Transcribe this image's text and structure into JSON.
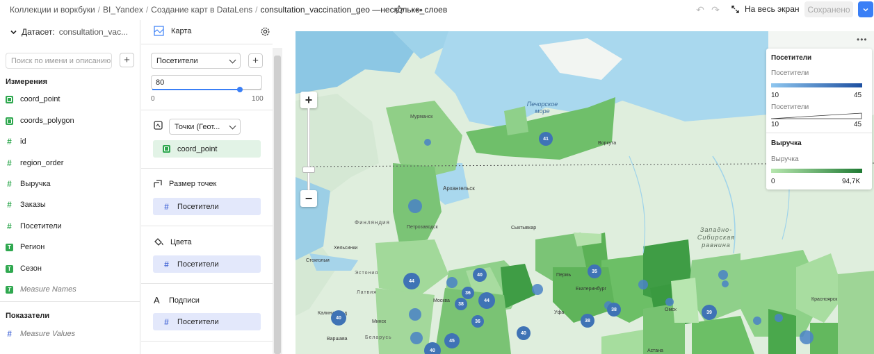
{
  "breadcrumbs": [
    "Коллекции и воркбуки",
    "BI_Yandex",
    "Создание карт в DataLens",
    "consultation_vaccination_geo —несколько_слоев"
  ],
  "toolbar": {
    "fullscreen_label": "На весь экран",
    "saved_label": "Сохранено"
  },
  "dataset": {
    "label": "Датасет:",
    "name": "consultation_vac..."
  },
  "search": {
    "placeholder": "Поиск по имени и описанию"
  },
  "dimensions": {
    "title": "Измерения",
    "items": [
      {
        "label": "coord_point",
        "icon": "geo-icon"
      },
      {
        "label": "coords_polygon",
        "icon": "geo-icon"
      },
      {
        "label": "id",
        "icon": "number-icon"
      },
      {
        "label": "region_order",
        "icon": "number-icon"
      },
      {
        "label": "Выручка",
        "icon": "number-icon"
      },
      {
        "label": "Заказы",
        "icon": "number-icon"
      },
      {
        "label": "Посетители",
        "icon": "number-icon"
      },
      {
        "label": "Регион",
        "icon": "text-icon"
      },
      {
        "label": "Сезон",
        "icon": "text-icon"
      },
      {
        "label": "Measure Names",
        "icon": "text-icon"
      }
    ]
  },
  "measures": {
    "title": "Показатели",
    "items": [
      {
        "label": "Measure Values",
        "icon": "number-icon"
      }
    ]
  },
  "visualization": {
    "type_label": "Карта",
    "layer_select": "Посетители",
    "opacity_value": "80",
    "opacity_fraction": 0.8,
    "slider_min": "0",
    "slider_max": "100",
    "geo_type": "Точки (Геот...",
    "geo_field": "coord_point",
    "size_title": "Размер точек",
    "size_field": "Посетители",
    "color_title": "Цвета",
    "color_field": "Посетители",
    "labels_title": "Подписи",
    "labels_field": "Посетители"
  },
  "map": {
    "place_labels": [
      "Печорское море",
      "Мурманск",
      "Архангельск",
      "Воркута",
      "Финляндия",
      "Петрозаводск",
      "Сыктывкар",
      "Хельсинки",
      "Стокгольм",
      "Эстония",
      "Латвия",
      "Калининград",
      "Минск",
      "Беларусь",
      "Варшава",
      "Москва",
      "Пермь",
      "Екатеринбург",
      "Уфа",
      "Астана",
      "Красноярск",
      "Западно-Сибирская равнина",
      "Омск"
    ],
    "clusters": [
      "41",
      "44",
      "40",
      "36",
      "44",
      "38",
      "36",
      "40",
      "40",
      "45",
      "40",
      "35",
      "38",
      "38",
      "39"
    ]
  },
  "legend": {
    "size": {
      "title": "Посетители",
      "subtitle": "Посетители",
      "min": "10",
      "max": "45"
    },
    "size2": {
      "subtitle": "Посетители",
      "min": "10",
      "max": "45"
    },
    "color": {
      "title": "Выручка",
      "subtitle": "Выручка",
      "min": "0",
      "max": "94,7K"
    }
  },
  "colors": {
    "accent": "#3a7ff6",
    "green": "#2fa84f",
    "cluster": "#3f73b5"
  }
}
